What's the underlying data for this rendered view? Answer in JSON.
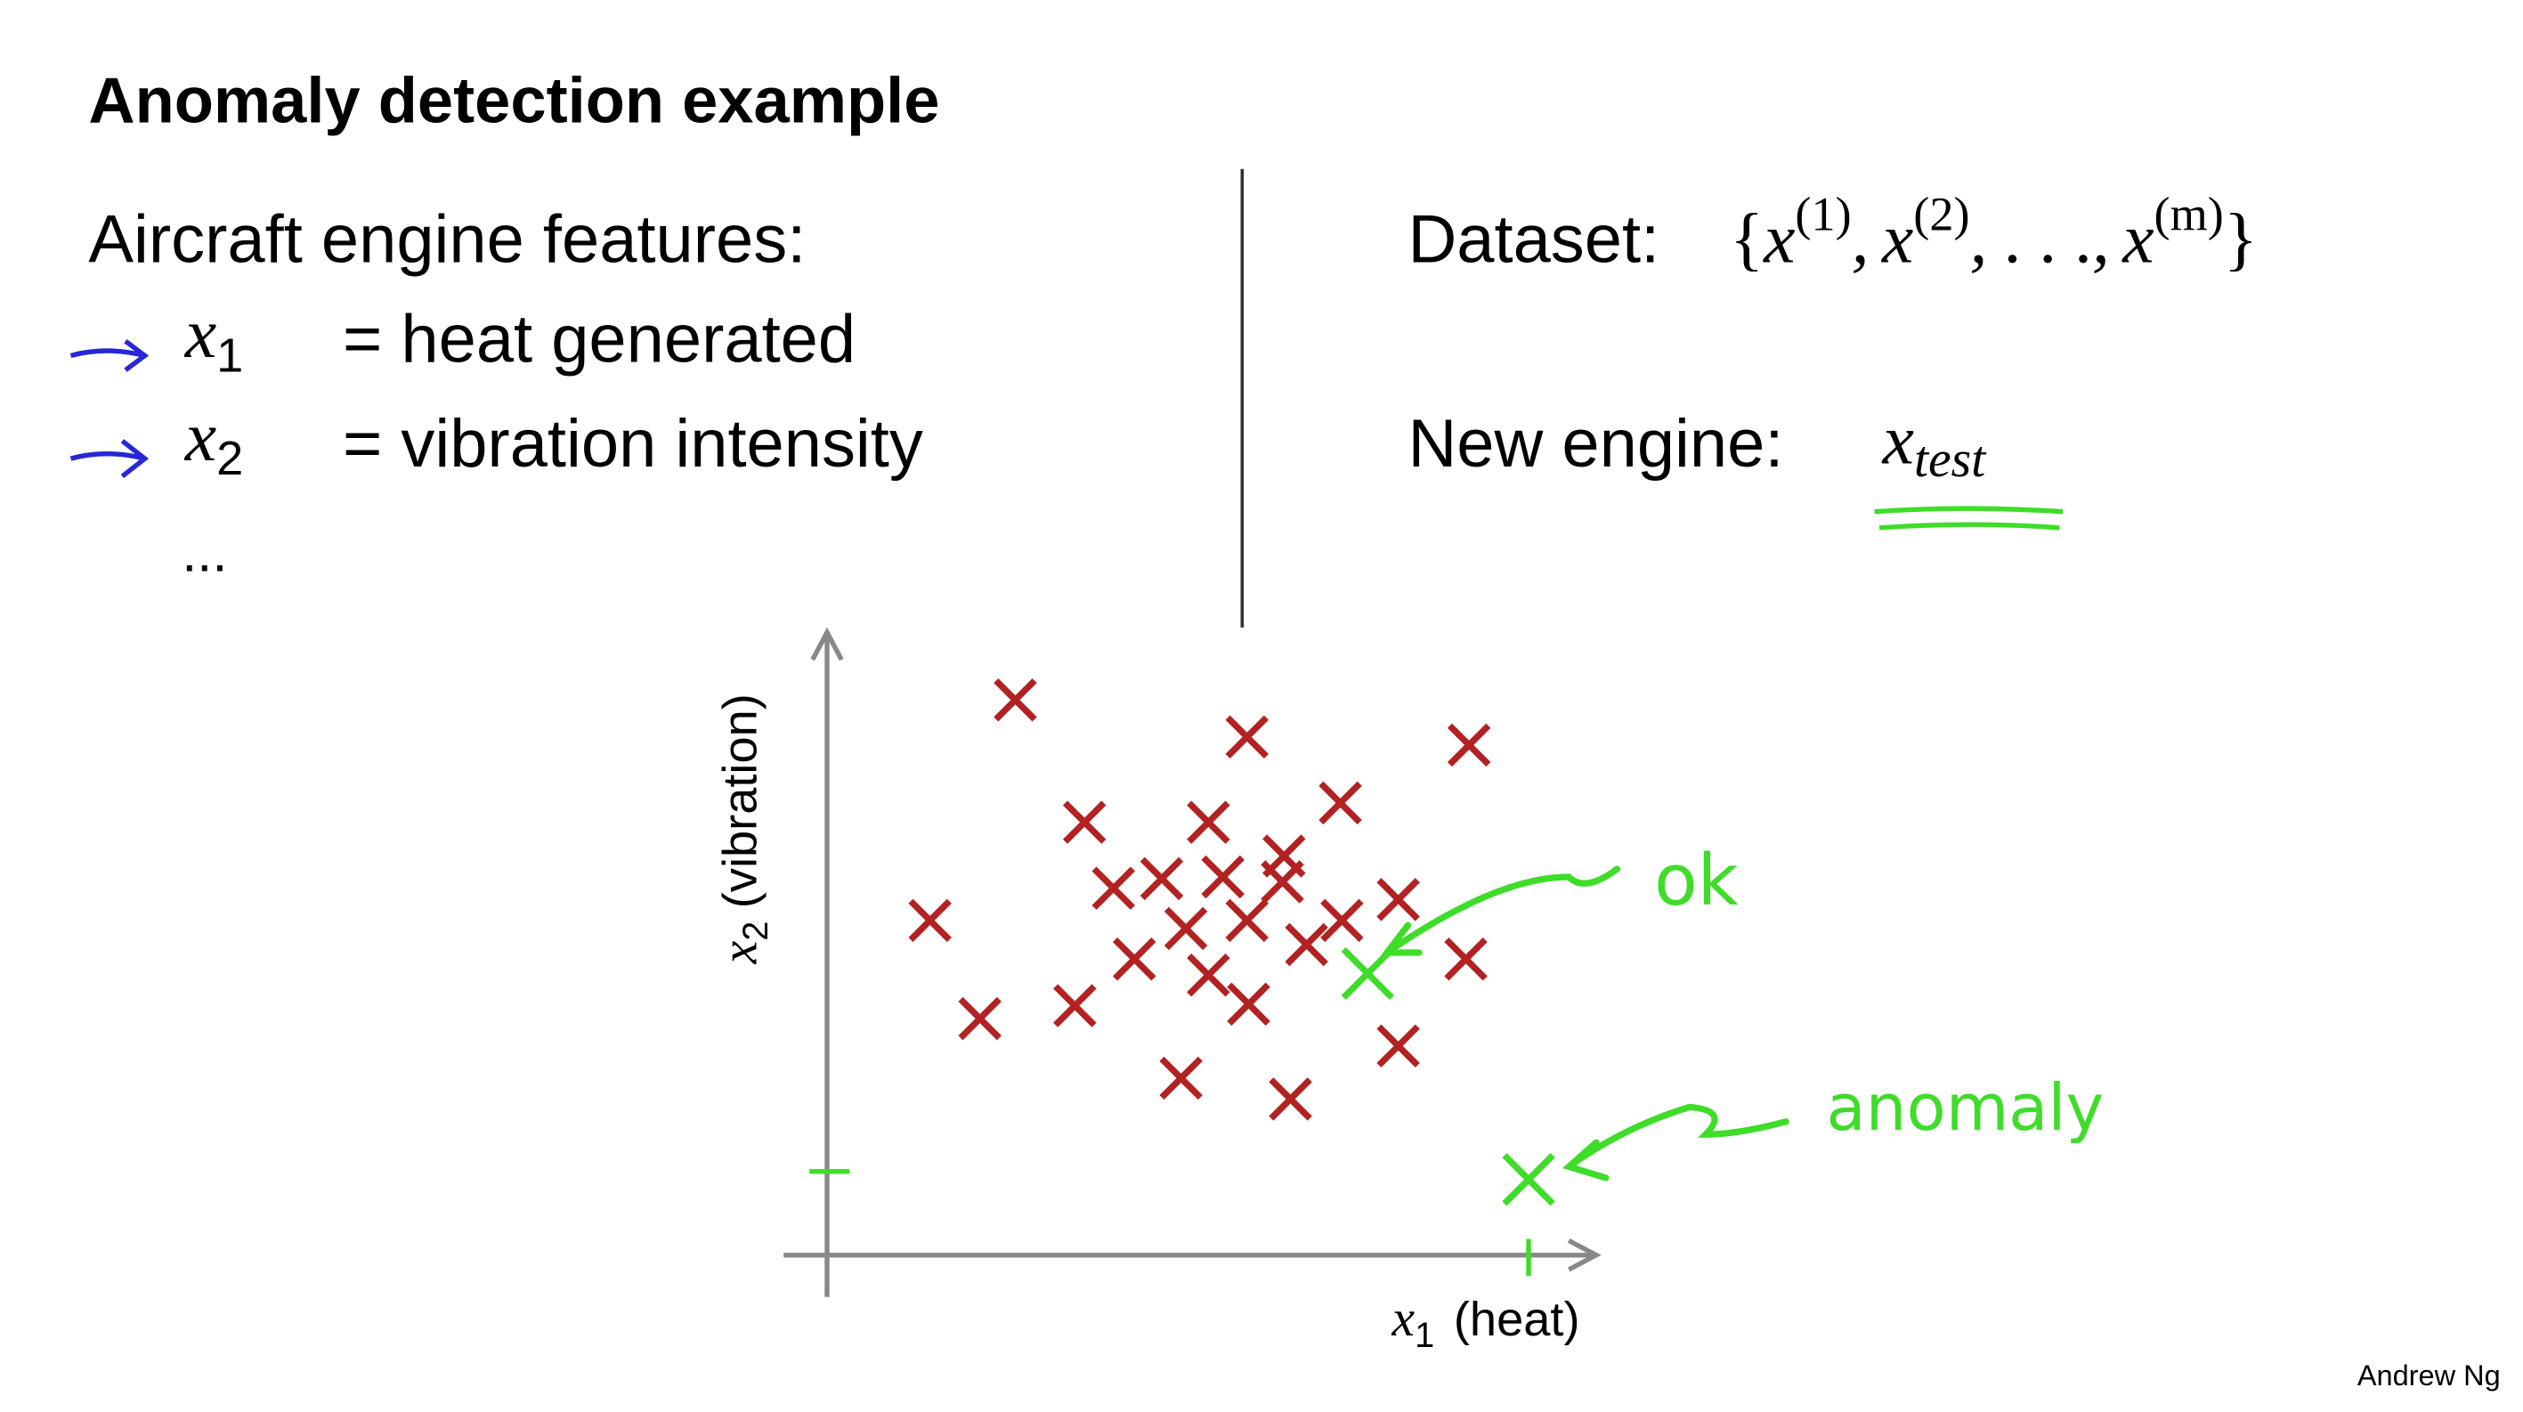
{
  "title": "Anomaly detection example",
  "features": {
    "heading": "Aircraft engine features:",
    "items": [
      {
        "symbol": "x",
        "sub": "1",
        "description": "= heat generated"
      },
      {
        "symbol": "x",
        "sub": "2",
        "description": "= vibration intensity"
      }
    ],
    "more": "..."
  },
  "dataset": {
    "label": "Dataset:",
    "open": "{",
    "items": [
      {
        "base": "x",
        "sup": "(1)"
      },
      {
        "base": "x",
        "sup": "(2)"
      }
    ],
    "separator": ",",
    "ellipsis": ". . .",
    "last": {
      "base": "x",
      "sup": "(m)"
    },
    "close": "}"
  },
  "new_engine": {
    "label": "New engine:",
    "base": "x",
    "sub": "test"
  },
  "plot": {
    "y_label": {
      "symbol": "x",
      "sub": "2",
      "text": "(vibration)"
    },
    "x_label": {
      "symbol": "x",
      "sub": "1",
      "text": "(heat)"
    },
    "annotations": [
      "ok",
      "anomaly"
    ]
  },
  "footer": "Andrew Ng"
}
